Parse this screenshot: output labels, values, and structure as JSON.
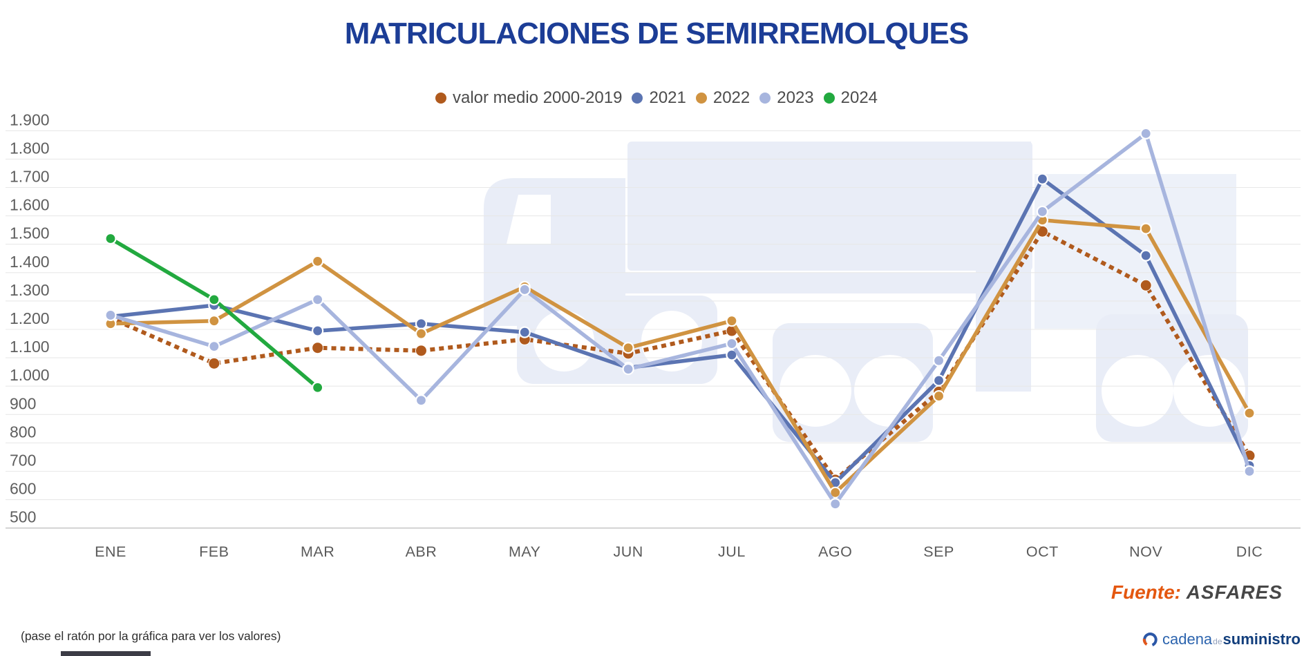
{
  "title": "MATRICULACIONES DE SEMIRREMOLQUES",
  "chart_data": {
    "type": "line",
    "title": "MATRICULACIONES DE SEMIRREMOLQUES",
    "categories": [
      "ENE",
      "FEB",
      "MAR",
      "ABR",
      "MAY",
      "JUN",
      "JUL",
      "AGO",
      "SEP",
      "OCT",
      "NOV",
      "DIC"
    ],
    "ylim": [
      500,
      1900
    ],
    "yticks": [
      500,
      600,
      700,
      800,
      900,
      1000,
      1100,
      1200,
      1300,
      1400,
      1500,
      1600,
      1700,
      1800,
      1900
    ],
    "ytick_labels": [
      "500",
      "600",
      "700",
      "800",
      "900",
      "1.000",
      "1.100",
      "1.200",
      "1.300",
      "1.400",
      "1.500",
      "1.600",
      "1.700",
      "1.800",
      "1.900"
    ],
    "grid": true,
    "legend_position": "top",
    "series": [
      {
        "name": "valor medio 2000-2019",
        "color": "#b05a1d",
        "style": "dotted",
        "values": [
          1240,
          1080,
          1135,
          1125,
          1165,
          1115,
          1195,
          670,
          980,
          1545,
          1355,
          755
        ]
      },
      {
        "name": "2021",
        "color": "#5b74b2",
        "style": "solid",
        "values": [
          1245,
          1285,
          1195,
          1220,
          1190,
          1065,
          1110,
          660,
          1020,
          1730,
          1460,
          720
        ]
      },
      {
        "name": "2022",
        "color": "#d09341",
        "style": "solid",
        "values": [
          1220,
          1230,
          1440,
          1185,
          1350,
          1135,
          1230,
          625,
          965,
          1585,
          1555,
          905
        ]
      },
      {
        "name": "2023",
        "color": "#a7b5de",
        "style": "solid",
        "values": [
          1250,
          1140,
          1305,
          950,
          1340,
          1060,
          1150,
          585,
          1090,
          1615,
          1890,
          700
        ]
      },
      {
        "name": "2024",
        "color": "#22a93f",
        "style": "solid",
        "values": [
          1520,
          1305,
          995,
          null,
          null,
          null,
          null,
          null,
          null,
          null,
          null,
          null
        ]
      }
    ]
  },
  "footer": {
    "hint": "(pase el ratón por la gráfica para ver los valores)",
    "source_label": "Fuente:",
    "source_value": "ASFARES",
    "logo": {
      "word1": "cadena",
      "word2": "de",
      "word3": "suministro"
    }
  }
}
